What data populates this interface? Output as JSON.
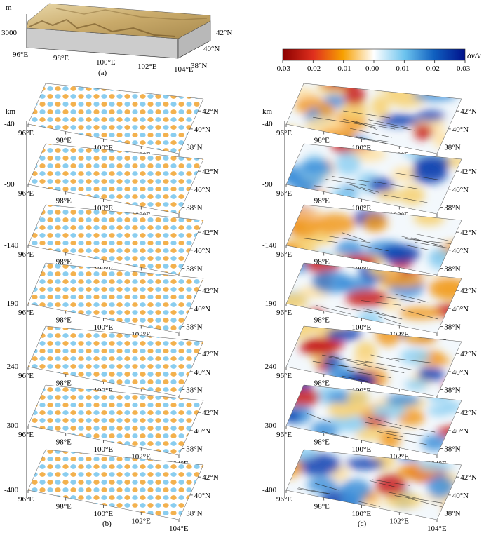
{
  "panel_a": {
    "label": "(a)",
    "unit": "m",
    "z_tick": "3000",
    "lon_ticks": [
      "96°E",
      "98°E",
      "100°E",
      "102°E",
      "104°E"
    ],
    "lat_ticks": [
      "42°N",
      "40°N",
      "38°N"
    ]
  },
  "panel_b": {
    "label": "(b)",
    "unit": "km",
    "depths": [
      "-40",
      "-90",
      "-140",
      "-190",
      "-240",
      "-300",
      "-400"
    ],
    "lon_ticks": [
      "96°E",
      "98°E",
      "100°E",
      "102°E",
      "104°E"
    ],
    "lat_ticks": [
      "42°N",
      "40°N",
      "38°N"
    ]
  },
  "panel_c": {
    "label": "(c)",
    "unit": "km",
    "depths": [
      "-40",
      "-90",
      "-140",
      "-190",
      "-240",
      "-300",
      "-400"
    ],
    "lon_ticks": [
      "96°E",
      "98°E",
      "100°E",
      "102°E",
      "104°E"
    ],
    "lat_ticks": [
      "42°N",
      "40°N",
      "38°N"
    ]
  },
  "colorbar": {
    "title": "δv/v",
    "ticks": [
      "-0.03",
      "-0.02",
      "-0.01",
      "0.00",
      "0.01",
      "0.02",
      "0.03"
    ],
    "min": -0.03,
    "max": 0.03,
    "colors": [
      "#8b0000",
      "#e0301e",
      "#f7a000",
      "#ffffff",
      "#6cc3ee",
      "#1060c0",
      "#00108a"
    ]
  }
}
